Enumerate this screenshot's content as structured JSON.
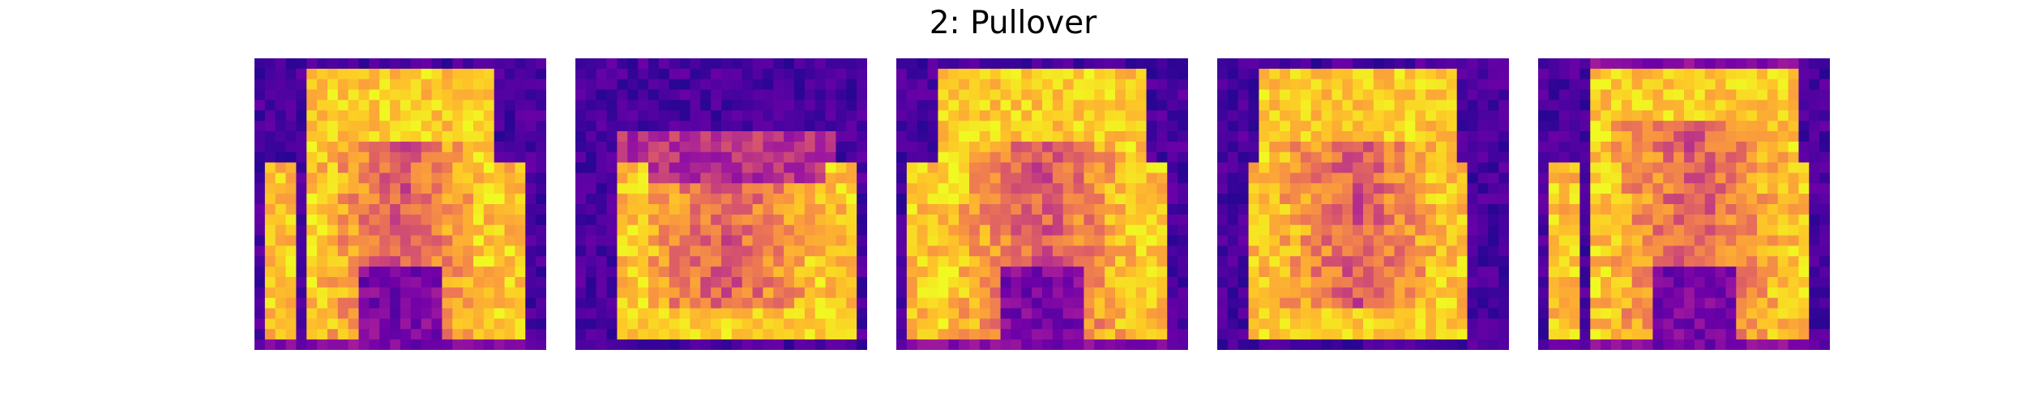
{
  "figure": {
    "title": "2: Pullover"
  },
  "panels": [
    {
      "image": "pullover-sample-1"
    },
    {
      "image": "pullover-sample-2"
    },
    {
      "image": "pullover-sample-3"
    },
    {
      "image": "pullover-sample-4"
    },
    {
      "image": "pullover-sample-5"
    }
  ],
  "colormap": {
    "name": "plasma",
    "stops": [
      "#0d0887",
      "#46039f",
      "#7201a8",
      "#9c179e",
      "#bd3786",
      "#d8576b",
      "#ed7953",
      "#fb9f3a",
      "#fdca26",
      "#f0f921"
    ]
  }
}
